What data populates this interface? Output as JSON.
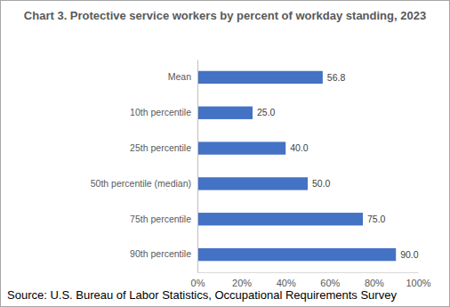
{
  "chart_data": {
    "type": "bar",
    "title": "Chart 3. Protective service workers by percent of workday standing, 2023",
    "annotations": [
      "Source: U.S. Bureau of Labor Statistics, Occupational Requirements Survey"
    ],
    "categories": [
      "Mean",
      "10th percentile",
      "25th percentile",
      "50th percentile (median)",
      "75th percentile",
      "90th percentile"
    ],
    "values": [
      56.8,
      25,
      40,
      50,
      75,
      90
    ],
    "value_labels": [
      "56.8",
      "25.0",
      "40.0",
      "50.0",
      "75.0",
      "90.0"
    ],
    "color": "#4472c4",
    "orientation": "horizontal",
    "data_labels": true,
    "grid": false,
    "xlim": [
      0,
      100
    ],
    "xticks": [
      {
        "value": 0,
        "label": "0%"
      },
      {
        "value": 20,
        "label": "20%"
      },
      {
        "value": 40,
        "label": "40%"
      },
      {
        "value": 60,
        "label": "60%"
      },
      {
        "value": 80,
        "label": "80%"
      },
      {
        "value": 100,
        "label": "100%"
      }
    ]
  }
}
